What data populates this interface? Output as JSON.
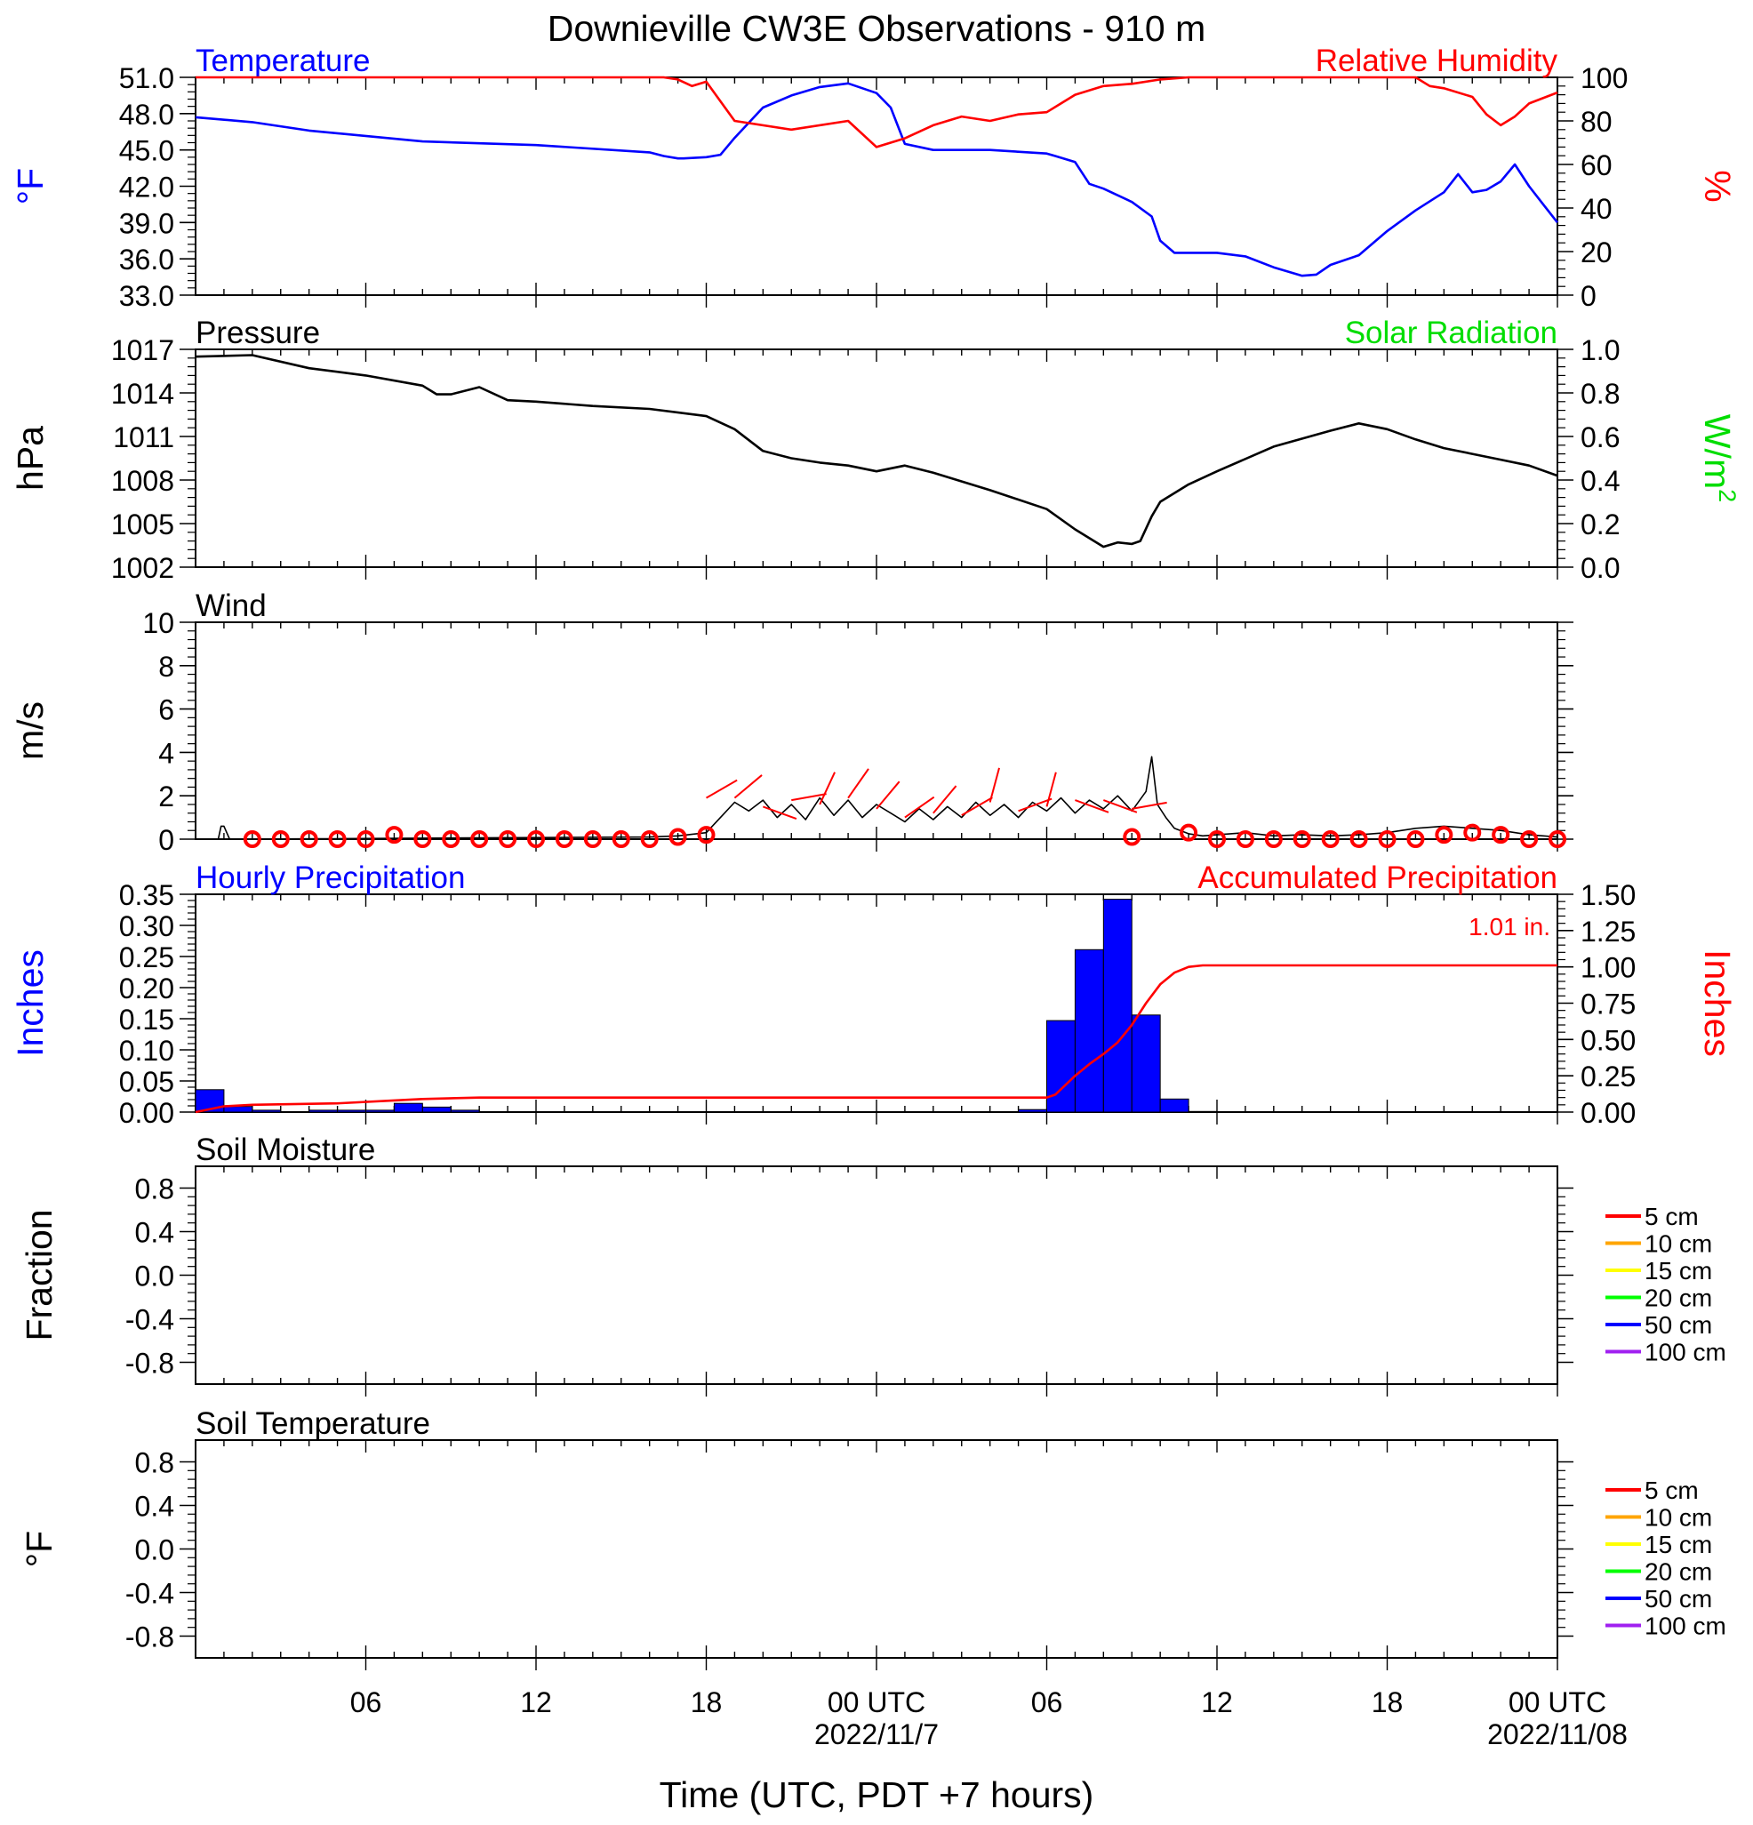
{
  "title": "Downieville CW3E Observations - 910 m",
  "xlabel": "Time (UTC, PDT +7 hours)",
  "time_axis": {
    "range_hours": [
      -24,
      24
    ],
    "ticks": [
      {
        "hour": -18,
        "label": "06",
        "date": ""
      },
      {
        "hour": -12,
        "label": "12",
        "date": ""
      },
      {
        "hour": -6,
        "label": "18",
        "date": ""
      },
      {
        "hour": 0,
        "label": "00 UTC",
        "date": "2022/11/7"
      },
      {
        "hour": 6,
        "label": "06",
        "date": ""
      },
      {
        "hour": 12,
        "label": "12",
        "date": ""
      },
      {
        "hour": 18,
        "label": "18",
        "date": ""
      },
      {
        "hour": 24,
        "label": "00 UTC",
        "date": "2022/11/08"
      }
    ]
  },
  "colors": {
    "blue": "#0000ff",
    "red": "#ff0000",
    "green": "#00dd00",
    "black": "#000000"
  },
  "chart_data": [
    {
      "type": "line",
      "id": "temp_rh",
      "title_left": "Temperature",
      "title_right": "Relative Humidity",
      "ylabel_left": "°F",
      "ylabel_right": "%",
      "ylim_left": [
        33,
        51
      ],
      "ylim_right": [
        0,
        100
      ],
      "yticks_left": [
        "33.0",
        "36.0",
        "39.0",
        "42.0",
        "45.0",
        "48.0",
        "51.0"
      ],
      "yticks_right": [
        "0",
        "20",
        "40",
        "60",
        "80",
        "100"
      ],
      "series": [
        {
          "name": "Temperature",
          "axis": "left",
          "color": "#0000ff",
          "x": [
            -24,
            -22,
            -20,
            -16,
            -12,
            -8,
            -7.5,
            -7,
            -6.8,
            -6,
            -5.5,
            -5,
            -4,
            -3,
            -2,
            -1,
            0,
            0.5,
            1,
            2,
            4,
            6,
            6.3,
            7,
            7.5,
            8,
            9,
            9.7,
            10,
            10.5,
            11,
            12,
            13,
            14,
            15,
            15.5,
            16,
            17,
            18,
            19,
            20,
            20.5,
            21,
            21.5,
            22,
            22.5,
            23,
            23.5,
            24
          ],
          "y": [
            47.7,
            47.3,
            46.6,
            45.7,
            45.4,
            44.8,
            44.5,
            44.3,
            44.3,
            44.4,
            44.6,
            46,
            48.5,
            49.5,
            50.2,
            50.5,
            49.7,
            48.5,
            45.5,
            45.0,
            45.0,
            44.7,
            44.5,
            44.0,
            42.2,
            41.8,
            40.7,
            39.5,
            37.5,
            36.5,
            36.5,
            36.5,
            36.2,
            35.3,
            34.6,
            34.7,
            35.5,
            36.3,
            38.3,
            40.0,
            41.5,
            43.0,
            41.5,
            41.7,
            42.4,
            43.8,
            42.0,
            40.5,
            39.0
          ]
        },
        {
          "name": "Relative Humidity",
          "axis": "right",
          "color": "#ff0000",
          "x": [
            -24,
            -7.5,
            -7,
            -6.5,
            -6,
            -5,
            -3,
            -1,
            0,
            1,
            2,
            3,
            4,
            5,
            6,
            6.5,
            7,
            8,
            9,
            10,
            11,
            12,
            14,
            16,
            18,
            19,
            19.5,
            20,
            21,
            21.5,
            22,
            22.5,
            23,
            24
          ],
          "y": [
            100,
            100,
            99,
            96,
            98,
            80,
            76,
            80,
            68,
            72,
            78,
            82,
            80,
            83,
            84,
            88,
            92,
            96,
            97,
            99,
            100,
            100,
            100,
            100,
            100,
            100,
            96,
            95,
            91,
            83,
            78,
            82,
            88,
            93
          ]
        }
      ]
    },
    {
      "type": "line",
      "id": "pressure",
      "title_left": "Pressure",
      "title_right": "Solar Radiation",
      "ylabel_left": "hPa",
      "ylabel_right": "W/m",
      "ylabel_right_sup": "2",
      "ylim_left": [
        1002,
        1017
      ],
      "ylim_right": [
        0,
        1
      ],
      "yticks_left": [
        "1002",
        "1005",
        "1008",
        "1011",
        "1014",
        "1017"
      ],
      "yticks_right": [
        "0.0",
        "0.2",
        "0.4",
        "0.6",
        "0.8",
        "1.0"
      ],
      "series": [
        {
          "name": "Pressure",
          "axis": "left",
          "color": "#000000",
          "x": [
            -24,
            -22,
            -20,
            -18,
            -16,
            -15.5,
            -15,
            -14,
            -13,
            -12,
            -10,
            -8,
            -6,
            -5,
            -4,
            -3,
            -2,
            -1,
            0,
            1,
            2,
            4,
            6,
            7,
            8,
            8.5,
            9,
            9.3,
            9.7,
            10,
            11,
            12,
            14,
            16,
            17,
            18,
            19,
            20,
            22,
            23,
            24
          ],
          "y": [
            1016.5,
            1016.6,
            1015.7,
            1015.2,
            1014.5,
            1013.9,
            1013.9,
            1014.4,
            1013.5,
            1013.4,
            1013.1,
            1012.9,
            1012.4,
            1011.5,
            1010.0,
            1009.5,
            1009.2,
            1009.0,
            1008.6,
            1009.0,
            1008.5,
            1007.3,
            1006.0,
            1004.6,
            1003.4,
            1003.7,
            1003.6,
            1003.8,
            1005.5,
            1006.5,
            1007.7,
            1008.6,
            1010.3,
            1011.4,
            1011.9,
            1011.5,
            1010.8,
            1010.2,
            1009.4,
            1009.0,
            1008.3
          ]
        }
      ]
    },
    {
      "type": "line",
      "id": "wind",
      "title_left": "Wind",
      "ylabel_left": "m/s",
      "ylim_left": [
        0,
        10
      ],
      "yticks_left": [
        "0",
        "2",
        "4",
        "6",
        "8",
        "10"
      ],
      "series": [
        {
          "name": "Wind speed",
          "axis": "left",
          "color": "#000000",
          "x": [
            -24,
            -23.2,
            -23.1,
            -23.0,
            -22.8,
            -8,
            -7,
            -6,
            -5.5,
            -5,
            -4.5,
            -4,
            -3.5,
            -3,
            -2.5,
            -2,
            -1.5,
            -1,
            -0.5,
            0,
            0.5,
            1,
            1.5,
            2,
            2.5,
            3,
            3.5,
            4,
            4.5,
            5,
            5.5,
            6,
            6.5,
            7,
            7.5,
            8,
            8.5,
            9,
            9.5,
            9.7,
            9.9,
            10.2,
            10.5,
            11,
            11.5,
            12,
            13,
            14,
            15,
            16,
            17,
            18,
            19,
            20,
            21,
            22,
            23,
            24
          ],
          "y": [
            0,
            0,
            0.6,
            0.6,
            0,
            0.1,
            0.15,
            0.3,
            1.0,
            1.7,
            1.3,
            1.8,
            1.0,
            1.6,
            0.9,
            1.9,
            1.1,
            1.8,
            1.0,
            1.6,
            1.2,
            0.8,
            1.4,
            0.9,
            1.5,
            1.0,
            1.7,
            1.1,
            1.6,
            1.0,
            1.7,
            1.3,
            1.9,
            1.2,
            1.8,
            1.4,
            2.0,
            1.3,
            2.2,
            3.8,
            1.6,
            1.0,
            0.5,
            0.25,
            0.15,
            0.2,
            0.3,
            0.15,
            0.2,
            0.15,
            0.2,
            0.3,
            0.5,
            0.6,
            0.5,
            0.4,
            0.2,
            0.1
          ]
        },
        {
          "name": "Hourly wind (calm markers)",
          "axis": "left",
          "color": "#ff0000",
          "marker": "circle",
          "x": [
            -22,
            -21,
            -20,
            -19,
            -18,
            -17,
            -16,
            -15,
            -14,
            -13,
            -12,
            -11,
            -10,
            -9,
            -8,
            -7,
            -6,
            9,
            11,
            12,
            13,
            14,
            15,
            16,
            17,
            18,
            19,
            20,
            21,
            22,
            23,
            24
          ],
          "y": [
            0,
            0,
            0,
            0,
            0,
            0.2,
            0,
            0,
            0,
            0,
            0,
            0,
            0,
            0,
            0,
            0.1,
            0.2,
            0.1,
            0.3,
            0,
            0,
            0,
            0,
            0,
            0,
            0,
            0,
            0.2,
            0.3,
            0.2,
            0,
            0
          ]
        },
        {
          "name": "Wind barbs",
          "axis": "left",
          "color": "#ff0000",
          "marker": "barb",
          "x": [
            -6,
            -5,
            -4,
            -3,
            -2,
            -1,
            0,
            1,
            2,
            3,
            4,
            5,
            6,
            7,
            8,
            9
          ],
          "y": [
            1.9,
            1.9,
            1.5,
            1.8,
            1.6,
            1.9,
            1.4,
            1.0,
            1.2,
            1.1,
            1.7,
            1.3,
            1.5,
            1.8,
            1.8,
            1.4
          ],
          "dir_deg": [
            120,
            130,
            70,
            100,
            155,
            145,
            140,
            125,
            140,
            120,
            165,
            110,
            165,
            70,
            70,
            100
          ]
        }
      ]
    },
    {
      "type": "bar",
      "id": "precip",
      "title_left": "Hourly Precipitation",
      "title_right": "Accumulated Precipitation",
      "annotation": "1.01 in.",
      "ylabel_left": "Inches",
      "ylabel_right": "Inches",
      "ylim_left": [
        0,
        0.35
      ],
      "ylim_right": [
        0,
        1.5
      ],
      "yticks_left": [
        "0.00",
        "0.05",
        "0.10",
        "0.15",
        "0.20",
        "0.25",
        "0.30",
        "0.35"
      ],
      "yticks_right": [
        "0.00",
        "0.25",
        "0.50",
        "0.75",
        "1.00",
        "1.25",
        "1.50"
      ],
      "series": [
        {
          "name": "Hourly Precipitation",
          "axis": "left",
          "color": "#0000ff",
          "x_start": [
            -24,
            -23,
            -22,
            -20,
            -19,
            -18,
            -17,
            -16,
            -15,
            5,
            6,
            7,
            8,
            9,
            10,
            11
          ],
          "x_end": [
            -23,
            -22,
            -21,
            -19,
            -18,
            -17,
            -16,
            -15,
            -14,
            6,
            7,
            8,
            9,
            10,
            11,
            12
          ],
          "values": [
            0.036,
            0.009,
            0.003,
            0.003,
            0.003,
            0.003,
            0.014,
            0.008,
            0.003,
            0.004,
            0.147,
            0.261,
            0.342,
            0.156,
            0.021,
            0.001
          ]
        },
        {
          "name": "Accumulated Precipitation",
          "axis": "right",
          "color": "#ff0000",
          "type": "line",
          "x": [
            -24,
            -23,
            -22,
            -19,
            -17,
            -16,
            -14,
            5,
            6,
            6.3,
            7,
            7.5,
            8,
            8.5,
            9,
            9.5,
            10,
            10.5,
            11,
            11.5,
            12,
            24
          ],
          "y": [
            0.0,
            0.04,
            0.05,
            0.06,
            0.08,
            0.09,
            0.1,
            0.1,
            0.1,
            0.12,
            0.25,
            0.33,
            0.4,
            0.48,
            0.6,
            0.75,
            0.88,
            0.96,
            1.0,
            1.01,
            1.01,
            1.01
          ]
        }
      ]
    },
    {
      "type": "line",
      "id": "soil_moisture",
      "title_left": "Soil Moisture",
      "ylabel_left": "Fraction",
      "ylim_left": [
        -1,
        1
      ],
      "yticks_left": [
        "-0.8",
        "-0.4",
        "0.0",
        "0.4",
        "0.8"
      ],
      "series": [
        {
          "name": "5 cm",
          "color": "#ff0000",
          "x": [],
          "y": []
        },
        {
          "name": "10 cm",
          "color": "#ffa500",
          "x": [],
          "y": []
        },
        {
          "name": "15 cm",
          "color": "#ffff00",
          "x": [],
          "y": []
        },
        {
          "name": "20 cm",
          "color": "#00ff00",
          "x": [],
          "y": []
        },
        {
          "name": "50 cm",
          "color": "#0000ff",
          "x": [],
          "y": []
        },
        {
          "name": "100 cm",
          "color": "#a020f0",
          "x": [],
          "y": []
        }
      ]
    },
    {
      "type": "line",
      "id": "soil_temperature",
      "title_left": "Soil Temperature",
      "ylabel_left": "°F",
      "ylim_left": [
        -1,
        1
      ],
      "yticks_left": [
        "-0.8",
        "-0.4",
        "0.0",
        "0.4",
        "0.8"
      ],
      "series": [
        {
          "name": "5 cm",
          "color": "#ff0000",
          "x": [],
          "y": []
        },
        {
          "name": "10 cm",
          "color": "#ffa500",
          "x": [],
          "y": []
        },
        {
          "name": "15 cm",
          "color": "#ffff00",
          "x": [],
          "y": []
        },
        {
          "name": "20 cm",
          "color": "#00ff00",
          "x": [],
          "y": []
        },
        {
          "name": "50 cm",
          "color": "#0000ff",
          "x": [],
          "y": []
        },
        {
          "name": "100 cm",
          "color": "#a020f0",
          "x": [],
          "y": []
        }
      ]
    }
  ]
}
